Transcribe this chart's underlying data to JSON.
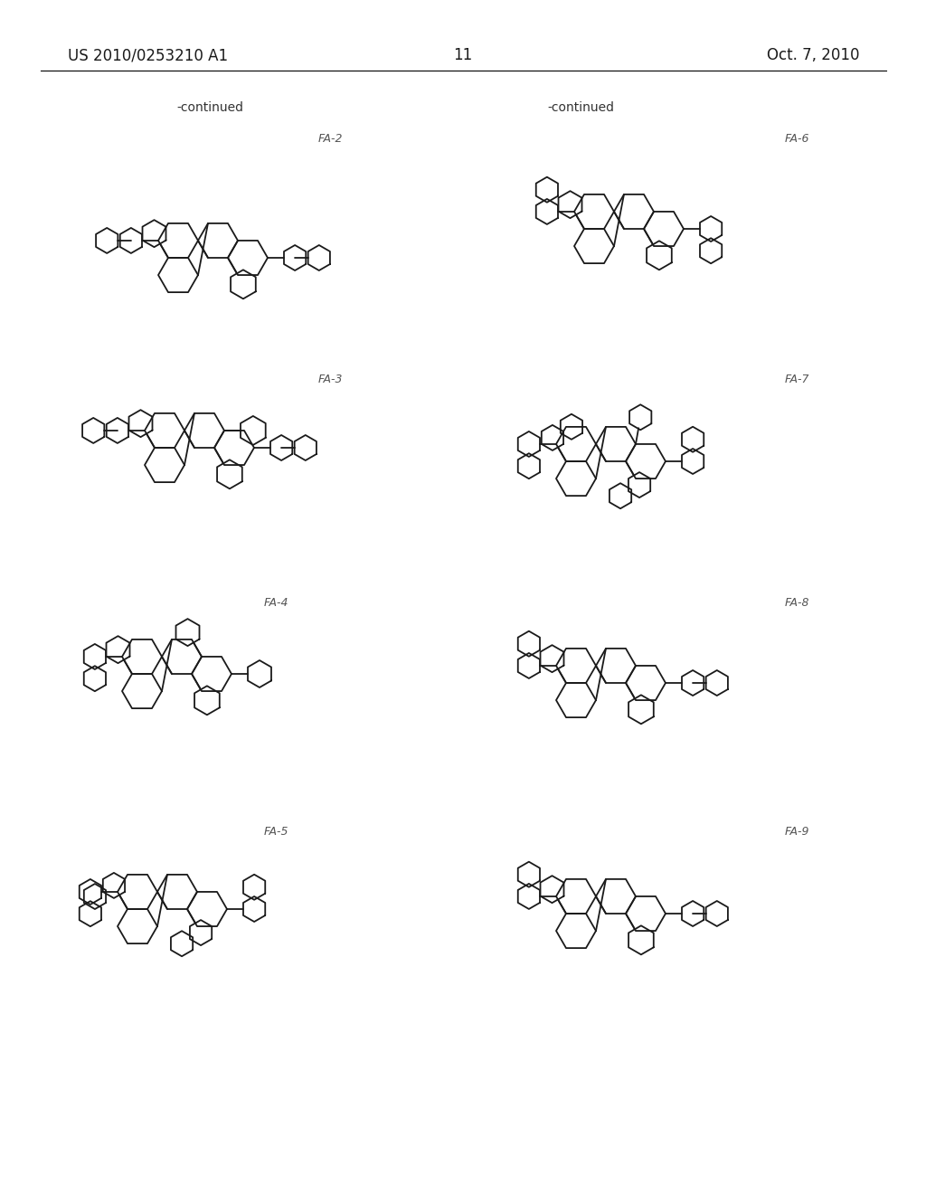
{
  "bg_color": "#ffffff",
  "text_color": "#1a1a1a",
  "header_left": "US 2010/0253210 A1",
  "header_right": "Oct. 7, 2010",
  "page_number": "11",
  "continued_left": "-continued",
  "continued_right": "-continued",
  "label_FA2": "FA-2",
  "label_FA3": "FA-3",
  "label_FA4": "FA-4",
  "label_FA5": "FA-5",
  "label_FA6": "FA-6",
  "label_FA7": "FA-7",
  "label_FA8": "FA-8",
  "label_FA9": "FA-9"
}
